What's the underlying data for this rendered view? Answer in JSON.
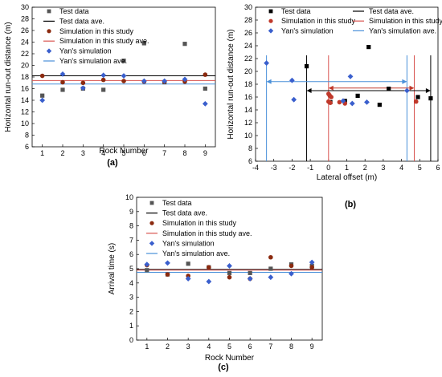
{
  "chart_data": [
    {
      "type": "scatter",
      "panel_label": "(a)",
      "xlabel": "Rock Number",
      "ylabel": "Horizontal run-out distance (m)",
      "xlim": [
        0.5,
        9.5
      ],
      "ylim": [
        6,
        30
      ],
      "xticks": [
        1,
        2,
        3,
        4,
        5,
        6,
        7,
        8,
        9
      ],
      "yticks": [
        6,
        8,
        10,
        12,
        14,
        16,
        18,
        20,
        22,
        24,
        26,
        28,
        30
      ],
      "legend_position": "top-left",
      "series": [
        {
          "name": "Test data",
          "kind": "points",
          "marker": "square",
          "color": "#555555",
          "x": [
            1,
            2,
            3,
            4,
            5,
            6,
            7,
            8,
            9
          ],
          "y": [
            14.8,
            15.8,
            16.0,
            15.8,
            20.8,
            23.8,
            17.1,
            23.7,
            16.0
          ]
        },
        {
          "name": "Test data ave.",
          "kind": "hline",
          "color": "#000000",
          "y": 18.2
        },
        {
          "name": "Simulation in this study",
          "kind": "points",
          "marker": "circle",
          "color": "#8b2a0f",
          "x": [
            1,
            2,
            3,
            4,
            5,
            6,
            7,
            8,
            9
          ],
          "y": [
            18.2,
            17.1,
            17.0,
            17.5,
            17.3,
            17.2,
            17.2,
            17.2,
            18.4
          ]
        },
        {
          "name": "Simulation in this study  ave.",
          "kind": "hline",
          "color": "#d9534f",
          "y": 17.4
        },
        {
          "name": "Yan's simulation",
          "kind": "points",
          "marker": "diamond",
          "color": "#3a5fcd",
          "x": [
            1,
            2,
            3,
            4,
            5,
            6,
            7,
            8,
            9
          ],
          "y": [
            14.0,
            18.5,
            16.1,
            18.3,
            18.2,
            17.3,
            17.3,
            17.6,
            13.4
          ]
        },
        {
          "name": "Yan's simulation ave.",
          "kind": "hline",
          "color": "#4a90d9",
          "y": 16.8
        }
      ]
    },
    {
      "type": "scatter",
      "panel_label": "(b)",
      "xlabel": "Lateral offset (m)",
      "ylabel": "Horizontal run-out distance (m)",
      "xlim": [
        -4,
        6
      ],
      "ylim": [
        6,
        30
      ],
      "xticks": [
        -4,
        -3,
        -2,
        -1,
        0,
        1,
        2,
        3,
        4,
        5,
        6
      ],
      "yticks": [
        6,
        8,
        10,
        12,
        14,
        16,
        18,
        20,
        22,
        24,
        26,
        28,
        30
      ],
      "legend_position": "top",
      "series": [
        {
          "name": "Test data",
          "kind": "points",
          "marker": "square",
          "color": "#000000",
          "x": [
            -1.2,
            0.1,
            0.9,
            1.6,
            2.8,
            3.3,
            4.9,
            5.6,
            2.2
          ],
          "y": [
            20.8,
            15.2,
            15.4,
            16.2,
            14.8,
            17.3,
            16.0,
            15.8,
            23.8
          ]
        },
        {
          "name": "Test data ave.",
          "kind": "vline",
          "color": "#000000",
          "x": [
            -1.2,
            5.6
          ]
        },
        {
          "name": "Simulation in this study",
          "kind": "points",
          "marker": "circle",
          "color": "#c0392b",
          "x": [
            0.0,
            0.05,
            0.1,
            0.15,
            0.0,
            0.6,
            4.8,
            0.1,
            0.9
          ],
          "y": [
            16.5,
            16.3,
            16.1,
            16.0,
            15.3,
            15.2,
            15.3,
            15.1,
            15.0
          ]
        },
        {
          "name": "Simulation in this study   ave.",
          "kind": "vline",
          "color": "#d9534f",
          "x": [
            0.0,
            4.7
          ]
        },
        {
          "name": "Yan's simulation",
          "kind": "points",
          "marker": "diamond",
          "color": "#3a5fcd",
          "x": [
            -3.4,
            -2.0,
            -1.9,
            1.2,
            1.3,
            2.1,
            4.3,
            0.8
          ],
          "y": [
            21.3,
            18.6,
            15.6,
            19.2,
            15.0,
            15.2,
            17.0,
            15.4
          ]
        },
        {
          "name": "Yan's simulation ave.",
          "kind": "vline",
          "color": "#4a90d9",
          "x": [
            -3.4,
            4.3
          ]
        }
      ],
      "annotations": [
        {
          "kind": "double-arrow",
          "color": "#4a90d9",
          "x": [
            -3.4,
            4.3
          ],
          "y": 18.4
        },
        {
          "kind": "double-arrow",
          "color": "#c0392b",
          "x": [
            0.0,
            4.7
          ],
          "y": 17.4
        },
        {
          "kind": "double-arrow",
          "color": "#000000",
          "x": [
            -1.2,
            5.6
          ],
          "y": 17.0
        }
      ]
    },
    {
      "type": "scatter",
      "panel_label": "(c)",
      "xlabel": "Rock Number",
      "ylabel": "Arrival time (s)",
      "xlim": [
        0.5,
        9.5
      ],
      "ylim": [
        0,
        10
      ],
      "xticks": [
        1,
        2,
        3,
        4,
        5,
        6,
        7,
        8,
        9
      ],
      "yticks": [
        0,
        1,
        2,
        3,
        4,
        5,
        6,
        7,
        8,
        9,
        10
      ],
      "legend_position": "top-left",
      "series": [
        {
          "name": "Test data",
          "kind": "points",
          "marker": "square",
          "color": "#555555",
          "x": [
            1,
            2,
            3,
            4,
            5,
            6,
            7,
            8,
            9
          ],
          "y": [
            4.9,
            4.6,
            5.35,
            5.1,
            4.7,
            4.7,
            5.0,
            5.3,
            5.2
          ]
        },
        {
          "name": "Test data ave.",
          "kind": "hline",
          "color": "#000000",
          "y": 4.95
        },
        {
          "name": "Simulation in this study",
          "kind": "points",
          "marker": "circle",
          "color": "#8b2a0f",
          "x": [
            1,
            2,
            3,
            4,
            5,
            6,
            7,
            8,
            9
          ],
          "y": [
            5.25,
            4.6,
            4.5,
            5.1,
            4.4,
            4.3,
            5.8,
            5.2,
            5.1
          ]
        },
        {
          "name": "Simulation in this study   ave.",
          "kind": "hline",
          "color": "#d9534f",
          "y": 4.9
        },
        {
          "name": "Yan's simulation",
          "kind": "points",
          "marker": "diamond",
          "color": "#3a5fcd",
          "x": [
            1,
            2,
            3,
            4,
            5,
            6,
            7,
            8,
            9
          ],
          "y": [
            5.3,
            5.4,
            4.3,
            4.1,
            5.2,
            4.3,
            4.4,
            4.65,
            5.45
          ]
        },
        {
          "name": "Yan's simulation ave.",
          "kind": "hline",
          "color": "#4a90d9",
          "y": 4.75
        }
      ]
    }
  ]
}
